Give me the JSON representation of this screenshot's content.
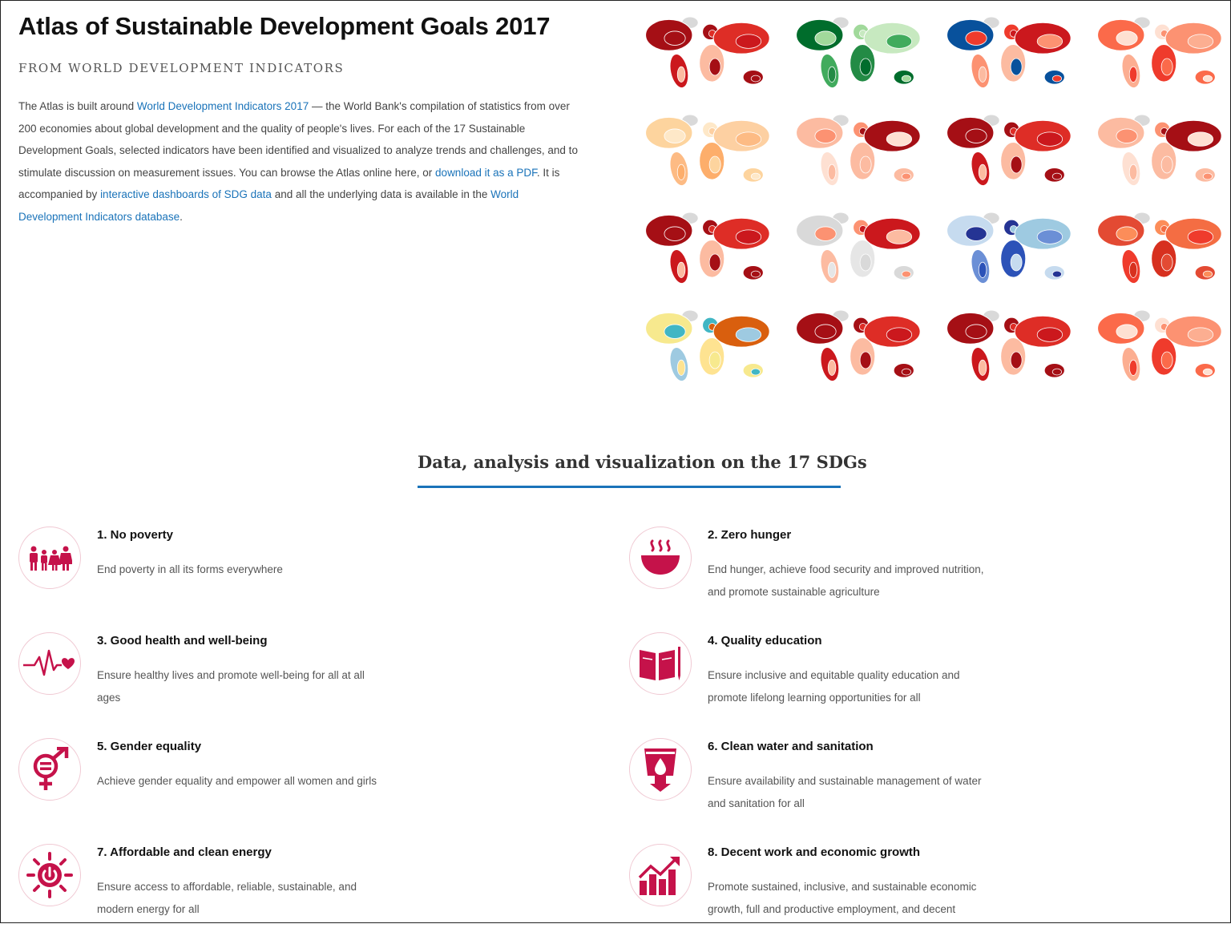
{
  "header": {
    "title": "Atlas of Sustainable Development Goals 2017",
    "subtitle": "FROM WORLD DEVELOPMENT INDICATORS"
  },
  "intro": {
    "t1": "The Atlas is built around ",
    "l1": "World Development Indicators 2017",
    "t2": "  — the World Bank's compilation of statistics from over 200 economies about global development and the quality of people's lives. For each of the 17 Sustainable Development Goals, selected indicators have been identified and visualized to analyze trends and challenges, and to stimulate discussion on measurement issues. You can browse the Atlas online here, or ",
    "l2": "download it as a PDF",
    "t3": ". It is accompanied by ",
    "l3": "interactive dashboards of SDG data",
    "t4": " and all the underlying data is available in the ",
    "l4": "World Development Indicators database",
    "t5": "."
  },
  "maps": [
    {
      "palette": "dark-red"
    },
    {
      "palette": "green"
    },
    {
      "palette": "blue-red"
    },
    {
      "palette": "light-red"
    },
    {
      "palette": "orange"
    },
    {
      "palette": "pale-red"
    },
    {
      "palette": "dark-red"
    },
    {
      "palette": "pale-red"
    },
    {
      "palette": "dark-red"
    },
    {
      "palette": "grey-red"
    },
    {
      "palette": "blue"
    },
    {
      "palette": "red"
    },
    {
      "palette": "yellow-green"
    },
    {
      "palette": "dark-red"
    },
    {
      "palette": "dark-red"
    },
    {
      "palette": "light-red"
    }
  ],
  "section": {
    "title": "Data, analysis and visualization on the 17 SDGs"
  },
  "goals": [
    {
      "title": "1. No poverty",
      "desc": "End poverty in all its forms everywhere",
      "icon": "family-icon"
    },
    {
      "title": "2. Zero hunger",
      "desc": "End hunger, achieve food security and improved nutrition, and promote sustainable agriculture",
      "icon": "bowl-icon"
    },
    {
      "title": "3. Good health and well-being",
      "desc": "Ensure healthy lives and promote well-being for all at all ages",
      "icon": "heartbeat-icon"
    },
    {
      "title": "4. Quality education",
      "desc": "Ensure inclusive and equitable quality education and promote lifelong learning opportunities for all",
      "icon": "book-icon"
    },
    {
      "title": "5. Gender equality",
      "desc": "Achieve gender equality and empower all women and girls",
      "icon": "gender-icon"
    },
    {
      "title": "6. Clean water and sanitation",
      "desc": "Ensure availability and sustainable management of water and sanitation for all",
      "icon": "water-icon"
    },
    {
      "title": "7. Affordable and clean energy",
      "desc": "Ensure access to affordable, reliable, sustainable, and modern energy for all",
      "icon": "sun-power-icon"
    },
    {
      "title": "8. Decent work and economic growth",
      "desc": "Promote sustained, inclusive, and sustainable economic growth, full and productive employment, and decent",
      "icon": "growth-chart-icon"
    }
  ],
  "colors": {
    "link": "#1a73b9",
    "icon": "#c5124a",
    "accent_rule": "#1a73b9"
  }
}
